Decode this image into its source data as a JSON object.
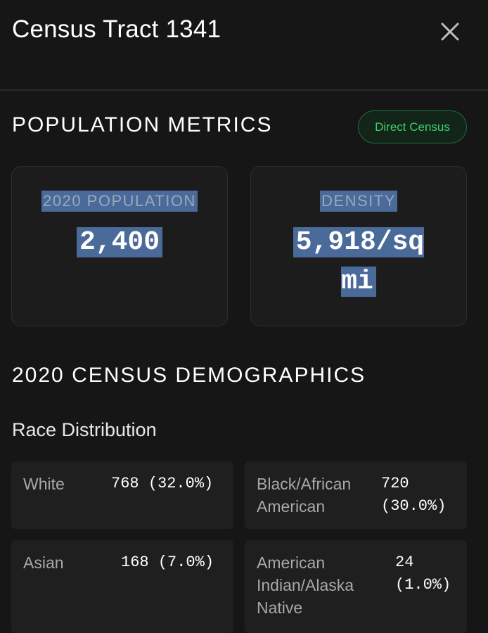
{
  "header": {
    "title": "Census Tract 1341",
    "close_icon": "close-icon"
  },
  "population_metrics": {
    "heading": "POPULATION METRICS",
    "badge": "Direct Census",
    "metrics": [
      {
        "label": "2020 POPULATION",
        "value": "2,400"
      },
      {
        "label": "DENSITY",
        "value": "5,918/sq mi"
      }
    ]
  },
  "demographics": {
    "heading": "2020 CENSUS DEMOGRAPHICS",
    "race_heading": "Race Distribution",
    "race": [
      {
        "name": "White",
        "value": "768 (32.0%)"
      },
      {
        "name": "Black/African American",
        "value": "720 (30.0%)"
      },
      {
        "name": "Asian",
        "value": "168 (7.0%)"
      },
      {
        "name": "American Indian/Alaska Native",
        "value": "24 (1.0%)"
      }
    ]
  },
  "colors": {
    "background": "#161616",
    "badge_text": "#3ecf6e",
    "selection": "#4a6a9a"
  }
}
